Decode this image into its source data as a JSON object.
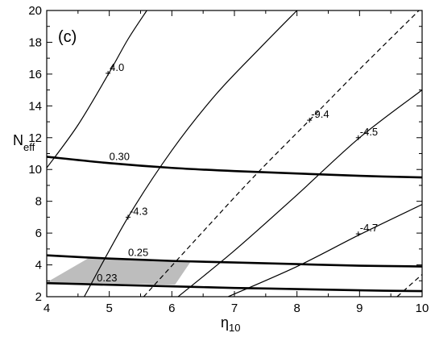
{
  "chart_data": {
    "type": "line",
    "panel_label": "(c)",
    "xlabel": {
      "main": "η",
      "sub": "10"
    },
    "ylabel": {
      "main": "N",
      "sub": "eff"
    },
    "xlim": [
      4,
      10
    ],
    "ylim": [
      2,
      20
    ],
    "xticks": [
      4,
      5,
      6,
      7,
      8,
      9,
      10
    ],
    "yticks": [
      2,
      4,
      6,
      8,
      10,
      12,
      14,
      16,
      18,
      20
    ],
    "grid": false,
    "legend": "none",
    "shaded_region": {
      "color": "#bdbdbd",
      "vertices": [
        [
          4.0,
          2.9
        ],
        [
          4.7,
          4.5
        ],
        [
          6.3,
          4.2
        ],
        [
          6.05,
          2.75
        ]
      ]
    },
    "series": [
      {
        "label": "0.30",
        "style": "thick",
        "points": [
          [
            4,
            10.8
          ],
          [
            5,
            10.4
          ],
          [
            6,
            10.1
          ],
          [
            7,
            9.9
          ],
          [
            8,
            9.75
          ],
          [
            9,
            9.6
          ],
          [
            10,
            9.5
          ]
        ],
        "label_at": [
          5.0,
          10.45
        ]
      },
      {
        "label": "0.25",
        "style": "thick",
        "points": [
          [
            4,
            4.6
          ],
          [
            5,
            4.4
          ],
          [
            6,
            4.25
          ],
          [
            7,
            4.15
          ],
          [
            8,
            4.05
          ],
          [
            9,
            3.95
          ],
          [
            10,
            3.9
          ]
        ],
        "label_at": [
          5.3,
          4.4
        ]
      },
      {
        "label": "0.23",
        "style": "thick",
        "points": [
          [
            4,
            2.85
          ],
          [
            5,
            2.75
          ],
          [
            6,
            2.65
          ],
          [
            7,
            2.55
          ],
          [
            8,
            2.48
          ],
          [
            9,
            2.4
          ],
          [
            10,
            2.35
          ]
        ],
        "label_at": [
          4.8,
          2.8
        ]
      },
      {
        "label": "4.0",
        "style": "thin",
        "points": [
          [
            4,
            10.1
          ],
          [
            4.5,
            12.8
          ],
          [
            5,
            16.1
          ],
          [
            5.3,
            18.2
          ],
          [
            5.6,
            20
          ]
        ],
        "label_at": [
          4.98,
          16.05
        ]
      },
      {
        "label": "-4.3",
        "style": "thin",
        "points": [
          [
            4.6,
            2
          ],
          [
            5.3,
            7.0
          ],
          [
            6,
            11.2
          ],
          [
            6.7,
            14.7
          ],
          [
            7.4,
            17.6
          ],
          [
            8,
            20
          ]
        ],
        "label_at": [
          5.3,
          7.0
        ]
      },
      {
        "label": "-9.4",
        "style": "dashed",
        "points": [
          [
            5.55,
            2
          ],
          [
            6.5,
            6.1
          ],
          [
            7.3,
            9.5
          ],
          [
            8.2,
            13.1
          ],
          [
            9,
            16.3
          ],
          [
            9.95,
            20
          ]
        ],
        "label_at": [
          8.2,
          13.1
        ]
      },
      {
        "label": "-4.5",
        "style": "thin",
        "points": [
          [
            6.1,
            2
          ],
          [
            7,
            4.9
          ],
          [
            8,
            8.4
          ],
          [
            9,
            12.0
          ],
          [
            10,
            15.0
          ]
        ],
        "label_at": [
          8.98,
          12.0
        ]
      },
      {
        "label": "-4.7",
        "style": "thin",
        "points": [
          [
            6.9,
            2
          ],
          [
            8,
            3.9
          ],
          [
            9,
            5.9
          ],
          [
            10,
            7.8
          ]
        ],
        "label_at": [
          8.98,
          5.95
        ]
      },
      {
        "label": "",
        "style": "dashed",
        "points": [
          [
            9.6,
            2
          ],
          [
            10,
            3.4
          ]
        ],
        "label_at": null
      }
    ]
  }
}
